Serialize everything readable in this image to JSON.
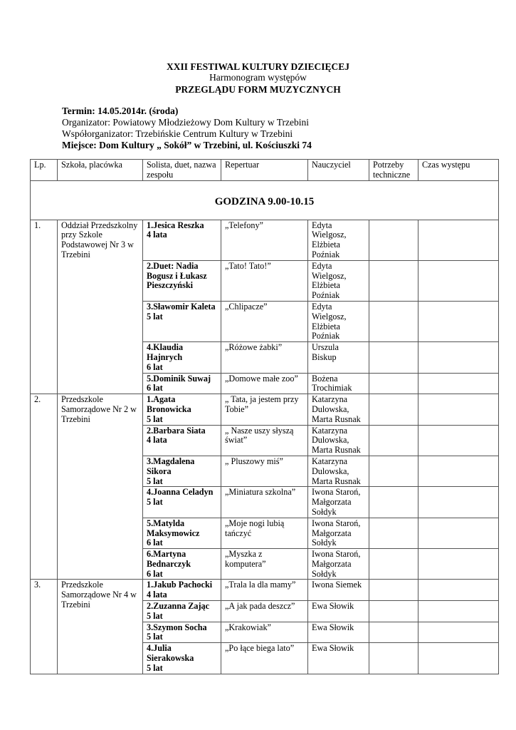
{
  "header": {
    "title": "XXII FESTIWAL KULTURY DZIECIĘCEJ",
    "subtitle": "Harmonogram występów",
    "subtitle2": "PRZEGLĄDU FORM  MUZYCZNYCH"
  },
  "info": {
    "termin": "Termin: 14.05.2014r. (środa)",
    "organizator": "Organizator:  Powiatowy Młodzieżowy Dom Kultury w Trzebini",
    "wspolorganizator": "Współorganizator: Trzebińskie Centrum Kultury w Trzebini",
    "miejsce": "Miejsce:  Dom Kultury „ Sokół” w Trzebini,  ul. Kościuszki 74"
  },
  "table": {
    "columns": [
      "Lp.",
      "Szkoła, placówka",
      "Solista, duet, nazwa zespołu",
      "Repertuar",
      "Nauczyciel",
      "Potrzeby techniczne",
      "Czas występu"
    ],
    "section": "GODZINA 9.00-10.15",
    "groups": [
      {
        "lp": "1.",
        "school": "Oddział Przedszkolny przy Szkole Podstawowej Nr 3 w Trzebini",
        "entries": [
          {
            "name": "1.Jesica Reszka",
            "age": "4 lata",
            "repertoire": "„Telefony”",
            "teacher": "Edyta Wielgosz, Elżbieta Poźniak"
          },
          {
            "name": "2.Duet: Nadia Bogusz i Łukasz Pieszczyński",
            "age": "",
            "repertoire": "„Tato! Tato!”",
            "teacher": "Edyta Wielgosz, Elżbieta Poźniak"
          },
          {
            "name": "3.Sławomir Kaleta",
            "age": "5 lat",
            "repertoire": "„Chlipacze”",
            "teacher": "Edyta Wielgosz, Elżbieta Poźniak"
          },
          {
            "name": "4.Klaudia Hajnrych",
            "age": "6 lat",
            "repertoire": "„Różowe żabki”",
            "teacher": "Urszula Biskup"
          },
          {
            "name": "5.Dominik Suwaj",
            "age": "6 lat",
            "repertoire": "„Domowe małe zoo”",
            "teacher": "Bożena Trochimiak"
          }
        ]
      },
      {
        "lp": "2.",
        "school": "Przedszkole Samorządowe Nr 2 w Trzebini",
        "entries": [
          {
            "name": "1.Agata Bronowicka",
            "age": "5 lat",
            "repertoire": "„ Tata, ja jestem przy Tobie”",
            "teacher": "Katarzyna Dulowska, Marta Rusnak"
          },
          {
            "name": "2.Barbara Siata",
            "age": "4 lata",
            "repertoire": "„ Nasze uszy słyszą świat”",
            "teacher": "Katarzyna Dulowska, Marta Rusnak"
          },
          {
            "name": "3.Magdalena Sikora",
            "age": "5 lat",
            "repertoire": "„ Pluszowy miś”",
            "teacher": "Katarzyna Dulowska, Marta Rusnak"
          },
          {
            "name": "4.Joanna Celadyn",
            "age": "5 lat",
            "repertoire": "„Miniatura szkolna”",
            "teacher": "Iwona Staroń, Małgorzata Sołdyk"
          },
          {
            "name": "5.Matylda Maksymowicz",
            "age": "6 lat",
            "repertoire": "„Moje nogi lubią tańczyć",
            "teacher": "Iwona Staroń, Małgorzata Sołdyk"
          },
          {
            "name": "6.Martyna Bednarczyk",
            "age": "6 lat",
            "repertoire": "„Myszka z komputera”",
            "teacher": "Iwona Staroń, Małgorzata Sołdyk"
          }
        ]
      },
      {
        "lp": "3.",
        "school": "Przedszkole Samorządowe Nr 4 w Trzebini",
        "entries": [
          {
            "name": "1.Jakub Pachocki",
            "age": "4 lata",
            "repertoire": "„Trala la dla mamy”",
            "teacher": "Iwona Siemek"
          },
          {
            "name": "2.Zuzanna Zając",
            "age": "5 lat",
            "repertoire": "„A jak pada deszcz”",
            "teacher": "Ewa Słowik"
          },
          {
            "name": "3.Szymon Socha",
            "age": "5 lat",
            "repertoire": "„Krakowiak”",
            "teacher": "Ewa Słowik"
          },
          {
            "name": "4.Julia Sierakowska",
            "age": "5 lat",
            "repertoire": "„Po łące biega lato”",
            "teacher": "Ewa Słowik"
          }
        ]
      }
    ]
  }
}
